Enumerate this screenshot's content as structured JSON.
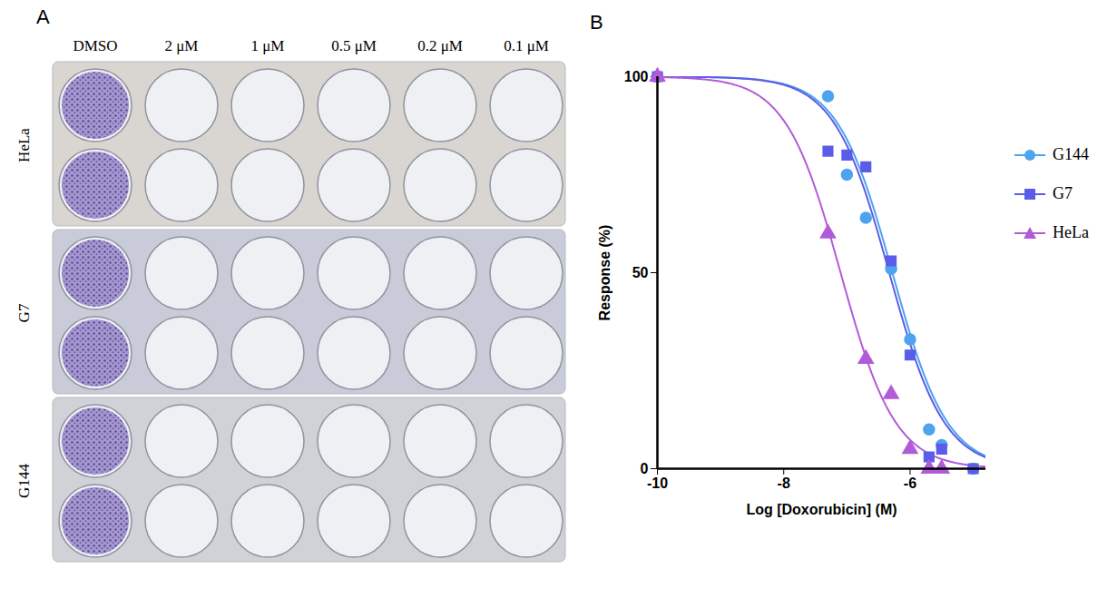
{
  "panel_a": {
    "label": "A",
    "columns": [
      "DMSO",
      "2 μM",
      "1 μM",
      "0.5 μM",
      "0.2 μM",
      "0.1 μM"
    ],
    "rows": [
      {
        "name": "HeLa",
        "stained": [
          true,
          false,
          false,
          false,
          false,
          false
        ]
      },
      {
        "name": "G7",
        "stained": [
          true,
          false,
          false,
          false,
          false,
          false
        ]
      },
      {
        "name": "G144",
        "stained": [
          true,
          false,
          false,
          false,
          false,
          false
        ]
      }
    ]
  },
  "chart_data": {
    "type": "line",
    "panel_label": "B",
    "x_label": "Log [Doxorubicin] (M)",
    "y_label": "Response (%)",
    "xlim": [
      -10,
      -4.8
    ],
    "xticks": [
      -10,
      -8,
      -6
    ],
    "ylim": [
      0,
      100
    ],
    "yticks": [
      0,
      50,
      100
    ],
    "grid": false,
    "legend": "right",
    "series": [
      {
        "name": "G144",
        "color": "#4ea3ee",
        "marker": "circle",
        "line_style": "solid",
        "x": [
          -10,
          -7.3,
          -7,
          -6.7,
          -6.3,
          -6,
          -5.7,
          -5.5,
          -5
        ],
        "values": [
          100,
          95,
          75,
          64,
          51,
          33,
          10,
          6,
          0
        ],
        "fit": {
          "top": 100,
          "bottom": 0,
          "log_ic50": -6.28,
          "hill_slope": -1.0
        }
      },
      {
        "name": "G7",
        "color": "#5b5de8",
        "marker": "square",
        "line_style": "solid",
        "x": [
          -10,
          -7.3,
          -7,
          -6.7,
          -6.3,
          -6,
          -5.7,
          -5.5,
          -5
        ],
        "values": [
          100,
          81,
          80,
          77,
          53,
          29,
          3,
          5,
          0
        ],
        "fit": {
          "top": 100,
          "bottom": 0,
          "log_ic50": -6.33,
          "hill_slope": -1.0
        }
      },
      {
        "name": "HeLa",
        "color": "#b25bd8",
        "marker": "triangle",
        "line_style": "solid",
        "x": [
          -10,
          -7.3,
          -6.7,
          -6.3,
          -6,
          -5.7,
          -5.5
        ],
        "values": [
          100,
          60,
          28,
          19,
          5,
          0,
          0
        ],
        "fit": {
          "top": 100,
          "bottom": 0,
          "log_ic50": -7.1,
          "hill_slope": -1.0
        }
      }
    ]
  }
}
